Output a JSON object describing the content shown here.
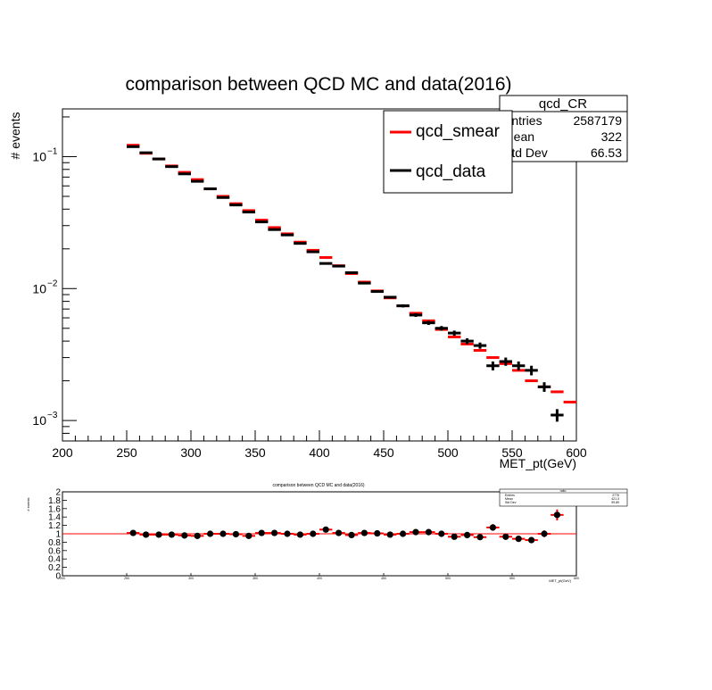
{
  "colors": {
    "smear": "#ff0000",
    "data": "#000000",
    "frame": "#000000",
    "ratio_line": "#ff0000"
  },
  "main": {
    "title": "comparison between QCD MC and data(2016)",
    "ylabel": "# events",
    "xlabel": "MET_pt(GeV)",
    "stats": {
      "title": "qcd_CR",
      "rows": [
        {
          "label": "Entries",
          "value": "2587179"
        },
        {
          "label": "Mean",
          "value": "322"
        },
        {
          "label": "Std Dev",
          "value": "66.53"
        }
      ]
    },
    "legend": [
      {
        "label": "qcd_smear",
        "color": "#ff0000"
      },
      {
        "label": "qcd_data",
        "color": "#000000"
      }
    ]
  },
  "ratio": {
    "title": "comparison between QCD MC and data(2016)",
    "ylabel": "# events",
    "xlabel": "MET_pt(GeV)",
    "stats": {
      "title": "ratio",
      "rows": [
        {
          "label": "Entries",
          "value": "2775"
        },
        {
          "label": "Mean",
          "value": "421.3"
        },
        {
          "label": "Std Dev",
          "value": "99.89"
        }
      ]
    }
  },
  "chart_data": [
    {
      "type": "scatter",
      "title": "comparison between QCD MC and data(2016)",
      "xlabel": "MET_pt(GeV)",
      "ylabel": "# events",
      "xlim": [
        200,
        600
      ],
      "ylim": [
        0.0007,
        0.23
      ],
      "yscale": "log",
      "yticks": [
        {
          "v": 0.001,
          "base": "10",
          "exp": "−3"
        },
        {
          "v": 0.01,
          "base": "10",
          "exp": "−2"
        },
        {
          "v": 0.1,
          "base": "10",
          "exp": "−1"
        }
      ],
      "xticks": [
        200,
        250,
        300,
        350,
        400,
        450,
        500,
        550,
        600
      ],
      "bin_width": 10,
      "series": [
        {
          "name": "qcd_smear",
          "x": [
            255,
            265,
            275,
            285,
            295,
            305,
            315,
            325,
            335,
            345,
            355,
            365,
            375,
            385,
            395,
            405,
            415,
            425,
            435,
            445,
            455,
            465,
            475,
            485,
            495,
            505,
            515,
            525,
            535,
            545,
            555,
            565,
            575,
            585,
            595
          ],
          "values": [
            0.122,
            0.106,
            0.096,
            0.085,
            0.076,
            0.067,
            0.057,
            0.05,
            0.044,
            0.039,
            0.033,
            0.029,
            0.026,
            0.0225,
            0.0195,
            0.0172,
            0.0149,
            0.013,
            0.0112,
            0.0096,
            0.0085,
            0.0074,
            0.0065,
            0.0057,
            0.0049,
            0.0043,
            0.0038,
            0.0034,
            0.003,
            0.0027,
            0.0024,
            0.002,
            0.0018,
            0.00165,
            0.00138
          ]
        },
        {
          "name": "qcd_data",
          "x": [
            255,
            265,
            275,
            285,
            295,
            305,
            315,
            325,
            335,
            345,
            355,
            365,
            375,
            385,
            395,
            405,
            415,
            425,
            435,
            445,
            455,
            465,
            475,
            485,
            495,
            505,
            515,
            525,
            535,
            545,
            555,
            565,
            575,
            585
          ],
          "values": [
            0.119,
            0.107,
            0.096,
            0.084,
            0.074,
            0.065,
            0.057,
            0.049,
            0.043,
            0.038,
            0.032,
            0.028,
            0.0255,
            0.022,
            0.019,
            0.0155,
            0.0148,
            0.0132,
            0.011,
            0.0095,
            0.0086,
            0.0074,
            0.0063,
            0.0055,
            0.005,
            0.0046,
            0.004,
            0.0037,
            0.0026,
            0.0028,
            0.0026,
            0.0024,
            0.0018,
            0.0011
          ],
          "errors": [
            0.001,
            0.001,
            0.001,
            0.001,
            0.001,
            0.001,
            0.0008,
            0.0007,
            0.0006,
            0.0005,
            0.0005,
            0.0004,
            0.0004,
            0.0003,
            0.0003,
            0.0003,
            0.0003,
            0.0002,
            0.0002,
            0.0002,
            0.0002,
            0.0002,
            0.0002,
            0.0002,
            0.0002,
            0.0002,
            0.0002,
            0.0002,
            0.0002,
            0.0002,
            0.0002,
            0.0002,
            0.00015,
            0.00012
          ]
        }
      ]
    },
    {
      "type": "scatter",
      "title": "comparison between QCD MC and data(2016)",
      "xlabel": "MET_pt(GeV)",
      "ylabel": "# events",
      "xlim": [
        200,
        600
      ],
      "ylim": [
        0,
        2
      ],
      "yticks": [
        "0",
        "0.2",
        "0.4",
        "0.6",
        "0.8",
        "1",
        "1.2",
        "1.4",
        "1.6",
        "1.8",
        "2"
      ],
      "xticks": [
        "200",
        "250",
        "300",
        "350",
        "400",
        "450",
        "500",
        "550",
        "600"
      ],
      "reference_line": 1,
      "series": [
        {
          "name": "ratio",
          "x": [
            255,
            265,
            275,
            285,
            295,
            305,
            315,
            325,
            335,
            345,
            355,
            365,
            375,
            385,
            395,
            405,
            415,
            425,
            435,
            445,
            455,
            465,
            475,
            485,
            495,
            505,
            515,
            525,
            535,
            545,
            555,
            565,
            575,
            585
          ],
          "values": [
            1.02,
            0.98,
            0.98,
            0.98,
            0.96,
            0.95,
            1.0,
            1.0,
            0.99,
            0.95,
            1.02,
            1.02,
            1.0,
            0.98,
            1.0,
            1.1,
            1.02,
            0.97,
            1.02,
            1.01,
            0.98,
            1.0,
            1.04,
            1.04,
            1.0,
            0.93,
            0.97,
            0.92,
            1.15,
            0.93,
            0.88,
            0.85,
            1.0,
            1.45
          ],
          "errors": [
            0.02,
            0.02,
            0.02,
            0.02,
            0.02,
            0.02,
            0.02,
            0.02,
            0.02,
            0.02,
            0.02,
            0.02,
            0.02,
            0.02,
            0.03,
            0.03,
            0.03,
            0.03,
            0.03,
            0.03,
            0.03,
            0.03,
            0.03,
            0.03,
            0.04,
            0.04,
            0.04,
            0.05,
            0.08,
            0.07,
            0.06,
            0.07,
            0.08,
            0.13
          ]
        }
      ]
    }
  ]
}
